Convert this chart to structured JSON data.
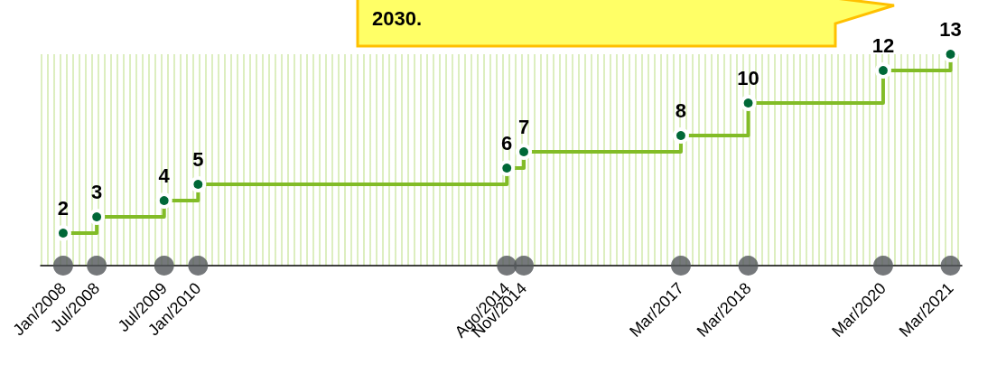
{
  "chart_data": {
    "type": "step",
    "x": [
      "2008-01",
      "2008-07",
      "2009-07",
      "2010-01",
      "2014-08",
      "2014-11",
      "2017-03",
      "2018-03",
      "2020-03",
      "2021-03"
    ],
    "xlim": [
      "2007-09",
      "2021-05"
    ],
    "xticks": [
      {
        "value": "2008-01",
        "label": "Jan/2008"
      },
      {
        "value": "2008-07",
        "label": "Jul/2008"
      },
      {
        "value": "2009-07",
        "label": "Jul/2009"
      },
      {
        "value": "2010-01",
        "label": "Jan/2010"
      },
      {
        "value": "2014-08",
        "label": "Ago/2014"
      },
      {
        "value": "2014-11",
        "label": "Nov/2014"
      },
      {
        "value": "2017-03",
        "label": "Mar/2017"
      },
      {
        "value": "2018-03",
        "label": "Mar/2018"
      },
      {
        "value": "2020-03",
        "label": "Mar/2020"
      },
      {
        "value": "2021-03",
        "label": "Mar/2021"
      }
    ],
    "ylim": [
      0,
      13
    ],
    "tick_labels": "x",
    "series": [
      {
        "color": "#82bc27",
        "marker": "circle",
        "values": [
          2,
          3,
          4,
          5,
          6,
          7,
          8,
          10,
          12,
          13
        ],
        "value_labels": [
          "2",
          "3",
          "4",
          "5",
          "6",
          "7",
          "8",
          "10",
          "12",
          "13"
        ]
      },
      {
        "type": "scatter",
        "color": "#53565a",
        "marker": "circle",
        "values": [
          0,
          0,
          0,
          0,
          0,
          0,
          0,
          0,
          0,
          0
        ]
      }
    ],
    "annotations": [
      "2030."
    ],
    "grid": false
  }
}
